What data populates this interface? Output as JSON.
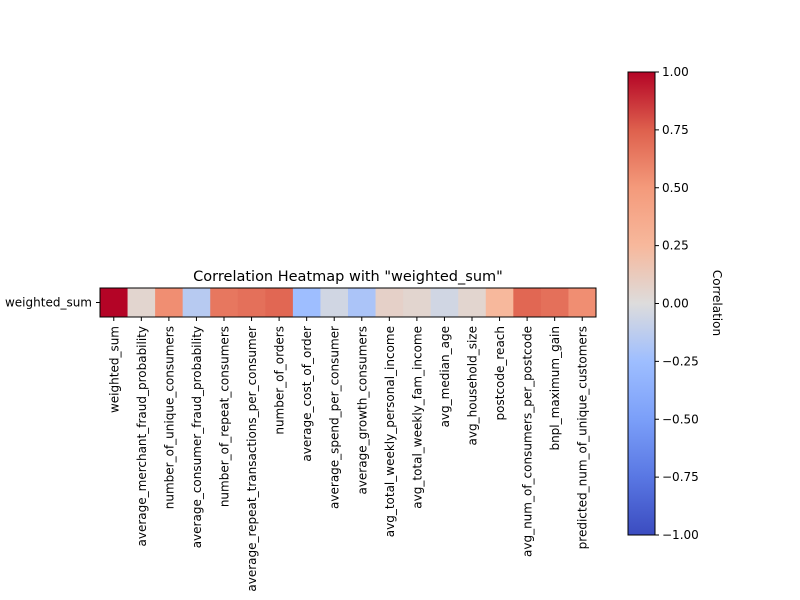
{
  "chart_data": {
    "type": "heatmap",
    "title": "Correlation Heatmap with \"weighted_sum\"",
    "row_labels": [
      "weighted_sum"
    ],
    "columns": [
      "weighted_sum",
      "average_merchant_fraud_probability",
      "number_of_unique_consumers",
      "average_consumer_fraud_probability",
      "number_of_repeat_consumers",
      "average_repeat_transactions_per_consumer",
      "number_of_orders",
      "average_cost_of_order",
      "average_spend_per_consumer",
      "average_growth_consumers",
      "avg_total_weekly_personal_income",
      "avg_total_weekly_fam_income",
      "avg_median_age",
      "avg_household_size",
      "postcode_reach",
      "avg_num_of_consumers_per_postcode",
      "bnpl_maximum_gain",
      "predicted_num_of_unique_customers"
    ],
    "values": [
      [
        1.0,
        0.05,
        0.55,
        -0.15,
        0.65,
        0.68,
        0.72,
        -0.25,
        -0.05,
        -0.2,
        0.08,
        0.05,
        -0.05,
        0.05,
        0.25,
        0.72,
        0.68,
        0.55
      ]
    ],
    "colormap": "coolwarm",
    "vmin": -1.0,
    "vmax": 1.0,
    "colorbar": {
      "label": "Correlation",
      "ticks": [
        1.0,
        0.75,
        0.5,
        0.25,
        0.0,
        -0.25,
        -0.5,
        -0.75,
        -1.0
      ],
      "tick_labels": [
        "1.00",
        "0.75",
        "0.50",
        "0.25",
        "0.00",
        "−0.25",
        "−0.50",
        "−0.75",
        "−1.00"
      ]
    }
  }
}
